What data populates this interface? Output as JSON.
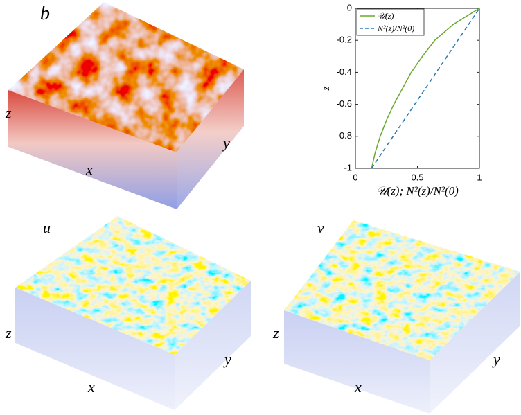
{
  "panels": [
    {
      "label": "b",
      "axes": {
        "x": "x",
        "y": "y",
        "z": "z"
      }
    },
    {
      "label": "u",
      "axes": {
        "x": "x",
        "y": "y",
        "z": "z"
      }
    },
    {
      "label": "v",
      "axes": {
        "x": "x",
        "y": "y",
        "z": "z"
      }
    }
  ],
  "chart_data": {
    "type": "line",
    "xlabel": "𝒰(z); N²(z)/N²(0)",
    "ylabel": "z",
    "xlim": [
      0,
      1
    ],
    "xticks": [
      0,
      0.5,
      1
    ],
    "ylim": [
      -1,
      0
    ],
    "yticks": [
      -1,
      -0.8,
      -0.6,
      -0.4,
      -0.2,
      0
    ],
    "legend": "upper left",
    "series": [
      {
        "name": "𝒰(z)",
        "color": "#6aa82e",
        "dash": false,
        "x": [
          0.13,
          0.16,
          0.2,
          0.25,
          0.31,
          0.38,
          0.45,
          0.54,
          0.64,
          0.79,
          1
        ],
        "values": [
          -1,
          -0.9,
          -0.8,
          -0.7,
          -0.6,
          -0.5,
          -0.4,
          -0.3,
          -0.2,
          -0.1,
          0
        ]
      },
      {
        "name": "N²(z)/N²(0)",
        "color": "#2a78b0",
        "dash": true,
        "x": [
          0.13,
          1
        ],
        "values": [
          -1,
          0
        ]
      }
    ]
  }
}
